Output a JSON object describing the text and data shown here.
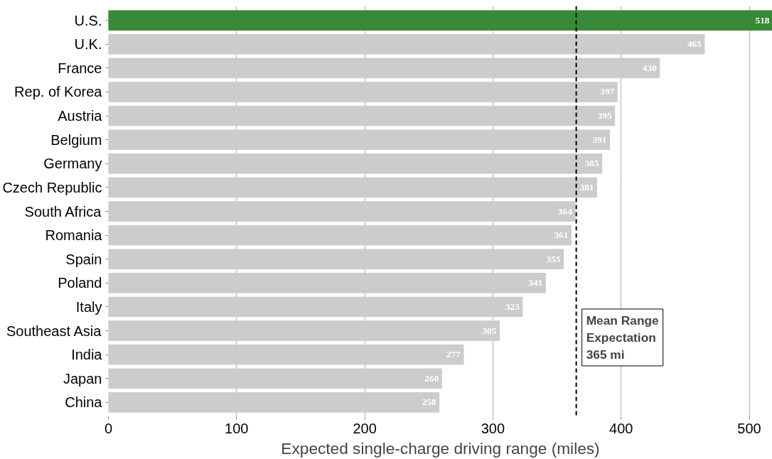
{
  "chart_data": {
    "type": "bar",
    "orientation": "horizontal",
    "xlabel": "Expected single-charge driving range (miles)",
    "categories": [
      "U.S.",
      "U.K.",
      "France",
      "Rep. of Korea",
      "Austria",
      "Belgium",
      "Germany",
      "Czech Republic",
      "South Africa",
      "Romania",
      "Spain",
      "Poland",
      "Italy",
      "Southeast Asia",
      "India",
      "Japan",
      "China"
    ],
    "values": [
      518,
      465,
      430,
      397,
      395,
      391,
      385,
      381,
      364,
      361,
      355,
      341,
      323,
      305,
      277,
      260,
      258
    ],
    "colors": [
      "#388a38",
      "#cccccc",
      "#cccccc",
      "#cccccc",
      "#cccccc",
      "#cccccc",
      "#cccccc",
      "#cccccc",
      "#cccccc",
      "#cccccc",
      "#cccccc",
      "#cccccc",
      "#cccccc",
      "#cccccc",
      "#cccccc",
      "#cccccc",
      "#cccccc"
    ],
    "xlim": [
      0,
      518
    ],
    "xticks": [
      0,
      100,
      200,
      300,
      400,
      500
    ],
    "grid": "x",
    "data_labels": true,
    "ref_lines": [
      {
        "axis": "x",
        "value": 365,
        "label": "Mean Range\nExpectation\n365 mi",
        "color": "#000000",
        "line_style": "dashed"
      }
    ]
  }
}
